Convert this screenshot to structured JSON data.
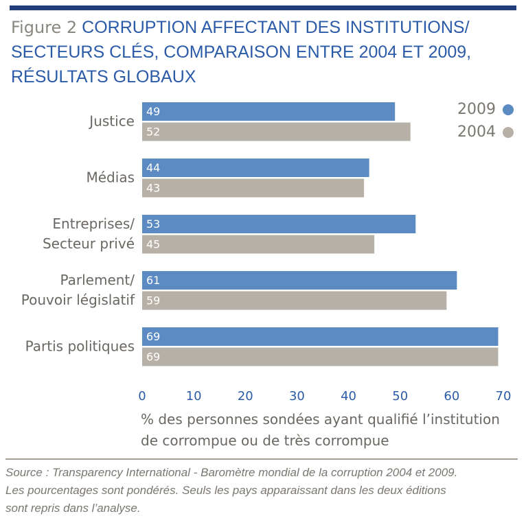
{
  "figure_label": "Figure 2",
  "chart_data": {
    "type": "hbar",
    "title": "CORRUPTION AFFECTANT DES INSTITUTIONS/\nSECTEURS CLÉS, COMPARAISON ENTRE 2004 ET 2009,\nRÉSULTATS GLOBAUX",
    "categories": [
      "Justice",
      "Médias",
      "Entreprises/\nSecteur privé",
      "Parlement/\nPouvoir législatif",
      "Partis politiques"
    ],
    "series": [
      {
        "name": "2009",
        "color": "#5b8bc2",
        "values": [
          49,
          44,
          53,
          61,
          69
        ]
      },
      {
        "name": "2004",
        "color": "#b7b0a6",
        "values": [
          52,
          43,
          45,
          59,
          69
        ]
      }
    ],
    "xlim": [
      0,
      70
    ],
    "xticks": [
      0,
      10,
      20,
      30,
      40,
      50,
      60,
      70
    ],
    "xlabel": "% des personnes sondées ayant qualifié l’institution\nde corrompue ou de très corrompue",
    "legend": "top-right",
    "grid": false
  },
  "source": "Source : Transparency International - Baromètre mondial de la corruption 2004 et 2009.\nLes pourcentages sont pondérés. Seuls les pays apparaissant dans les deux éditions\nsont repris dans l’analyse."
}
